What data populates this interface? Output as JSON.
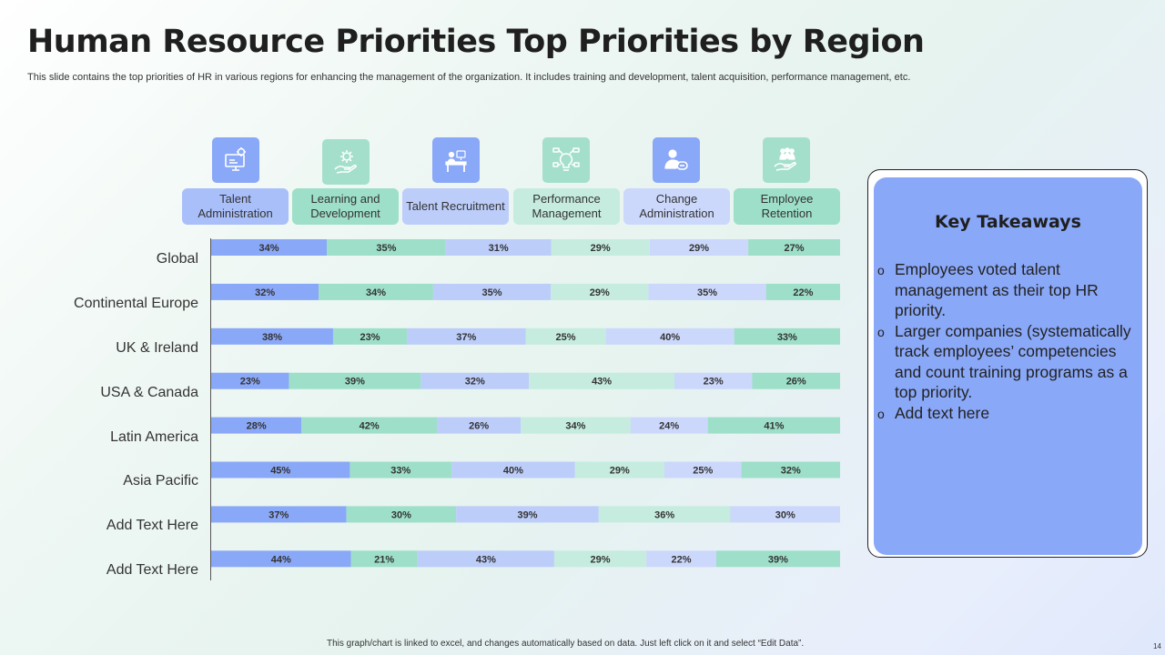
{
  "title": "Human Resource Priorities Top Priorities by Region",
  "subtitle": "This slide contains the top priorities of HR in various regions for enhancing the management of the organization. It includes training and development, talent acquisition, performance management, etc.",
  "icons": [
    "gear-monitor-icon",
    "hand-gear-icon",
    "desk-recruitment-icon",
    "idea-network-icon",
    "person-change-icon",
    "hand-people-icon"
  ],
  "colors": {
    "blue_dark": "#8aa8f8",
    "teal_dark": "#9ddfc8",
    "blue_light": "#bccdfa",
    "teal_light": "#c5ecdf",
    "blue_pale": "#cbd8fb",
    "icon_blue": "#8aa8f8",
    "icon_teal": "#a4dfcb",
    "label_blue": "#a9bffa",
    "label_teal": "#9ddfc8",
    "label_light": "#bccdfa",
    "label_lteal": "#c5ecdf",
    "label_pale": "#cbd8fb"
  },
  "chart_data": {
    "type": "bar",
    "orientation": "horizontal",
    "stacked": true,
    "categories": [
      "Global",
      "Continental Europe",
      "UK & Ireland",
      "USA & Canada",
      "Latin America",
      "Asia Pacific",
      "Add Text Here",
      "Add Text Here"
    ],
    "series": [
      {
        "name": "Talent Administration",
        "values": [
          34,
          32,
          38,
          23,
          28,
          45,
          37,
          44
        ]
      },
      {
        "name": "Learning and Development",
        "values": [
          35,
          34,
          23,
          39,
          42,
          33,
          30,
          21
        ]
      },
      {
        "name": "Talent Recruitment",
        "values": [
          31,
          35,
          37,
          32,
          26,
          40,
          39,
          43
        ]
      },
      {
        "name": "Performance Management",
        "values": [
          29,
          29,
          25,
          43,
          34,
          29,
          36,
          29
        ]
      },
      {
        "name": "Change Administration",
        "values": [
          29,
          35,
          40,
          23,
          24,
          25,
          30,
          22
        ]
      },
      {
        "name": "Employee Retention",
        "values": [
          27,
          22,
          33,
          26,
          41,
          32,
          null,
          39
        ]
      }
    ],
    "value_suffix": "%",
    "legend_position": "top",
    "grid": false
  },
  "takeaways": {
    "title": "Key Takeaways",
    "bullet": "o",
    "items": [
      "Employees voted talent management as their top HR priority.",
      "Larger companies (systematically track employees’ competencies and count training programs as a top priority.",
      "Add text here"
    ]
  },
  "footer": "This graph/chart is linked to excel, and changes automatically based on data. Just left click on it and select “Edit Data”.",
  "page_number": "14"
}
